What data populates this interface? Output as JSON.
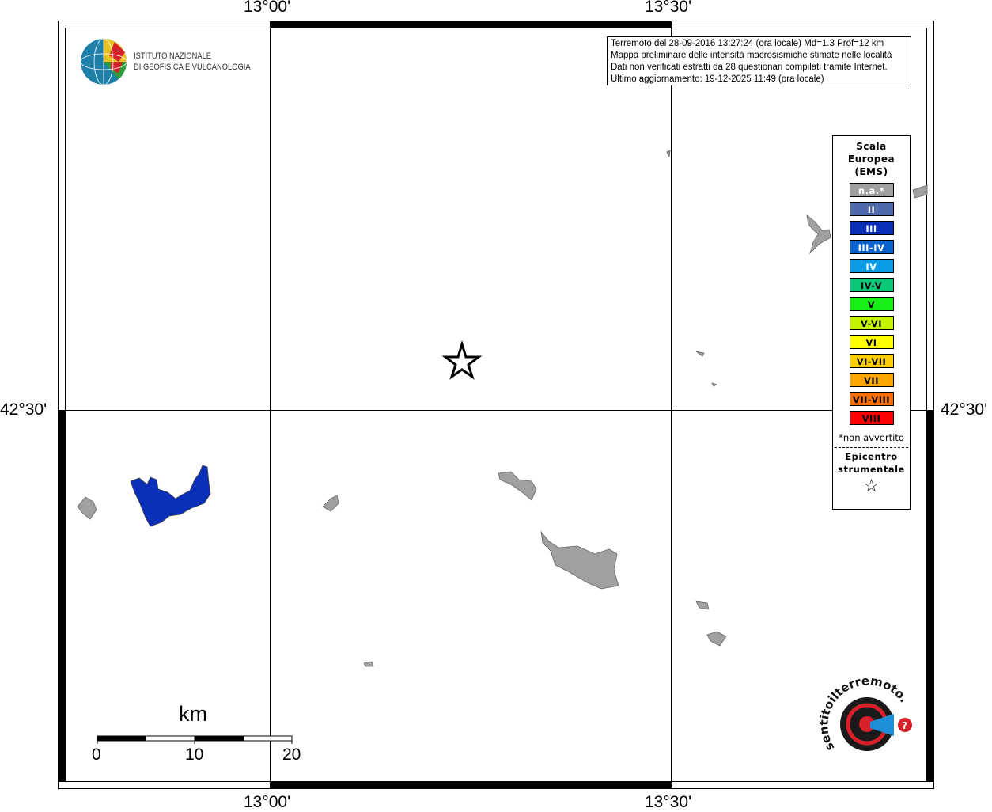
{
  "map": {
    "ticks_top": [
      "13°00'",
      "13°30'"
    ],
    "ticks_bottom": [
      "13°00'",
      "13°30'"
    ],
    "ticks_left": [
      "42°30'"
    ],
    "ticks_right": [
      "42°30'"
    ]
  },
  "info": {
    "lines": [
      "Terremoto del 28-09-2016 13:27:24 (ora locale) Md=1.3 Prof=12 km",
      "Mappa preliminare delle intensità macrosismiche stimate nelle località",
      "Dati non verificati estratti da 28 questionari compilati tramite Internet.",
      "Ultimo aggiornamento: 19-12-2025 11:49 (ora locale)"
    ]
  },
  "logo_ingv": {
    "line1": "ISTITUTO NAZIONALE",
    "line2": "DI GEOFISICA E VULCANOLOGIA"
  },
  "logo_hsit": {
    "text": "www.haisentitoilterremoto.it",
    "icon": "speaker-target-icon"
  },
  "legend": {
    "title": [
      "Scala",
      "Europea",
      "(EMS)"
    ],
    "items": [
      {
        "label": "n.a.*",
        "color": "#a0a0a0",
        "text_color": "#ffffff"
      },
      {
        "label": "II",
        "color": "#4f6aac",
        "text_color": "#ffffff"
      },
      {
        "label": "III",
        "color": "#0a2fb8",
        "text_color": "#ffffff"
      },
      {
        "label": "III-IV",
        "color": "#0a63cf",
        "text_color": "#ffffff"
      },
      {
        "label": "IV",
        "color": "#0a9be6",
        "text_color": "#ffffff"
      },
      {
        "label": "IV-V",
        "color": "#0ac878",
        "text_color": "#000000"
      },
      {
        "label": "V",
        "color": "#14f014",
        "text_color": "#000000"
      },
      {
        "label": "V-VI",
        "color": "#c3f500",
        "text_color": "#000000"
      },
      {
        "label": "VI",
        "color": "#ffff00",
        "text_color": "#000000"
      },
      {
        "label": "VI-VII",
        "color": "#ffcd00",
        "text_color": "#000000"
      },
      {
        "label": "VII",
        "color": "#ffa500",
        "text_color": "#000000"
      },
      {
        "label": "VII-VIII",
        "color": "#ff6e00",
        "text_color": "#000000"
      },
      {
        "label": "VIII",
        "color": "#ff0000",
        "text_color": "#000000"
      }
    ],
    "note": "*non avvertito",
    "epicenter_label": [
      "Epicentro",
      "strumentale"
    ],
    "epicenter_icon": "star-icon"
  },
  "scalebar": {
    "unit": "km",
    "labels": [
      "0",
      "10",
      "20"
    ]
  },
  "areas": [
    {
      "intensity": "III",
      "color": "#0a2fb8"
    },
    {
      "intensity": "n.a.*",
      "color": "#a0a0a0"
    }
  ]
}
